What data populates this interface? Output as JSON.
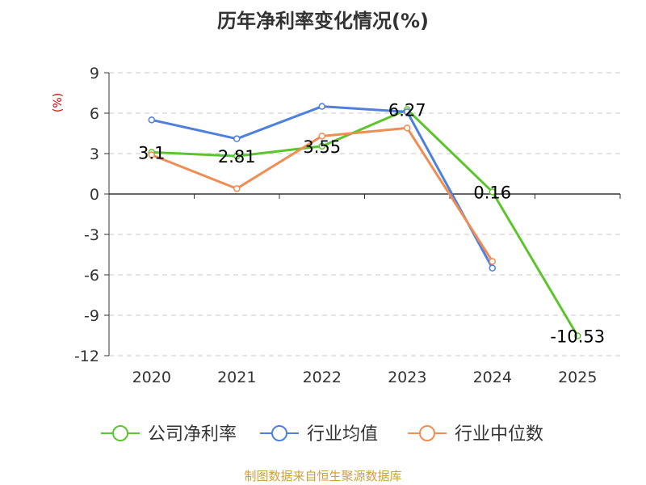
{
  "chart_data": {
    "type": "line",
    "title": "历年净利率变化情况(%)",
    "ylabel": "(%)",
    "categories": [
      "2020",
      "2021",
      "2022",
      "2023",
      "2024",
      "2025"
    ],
    "y_ticks": [
      9,
      6,
      3,
      0,
      -3,
      -6,
      -9,
      -12
    ],
    "y_tick_labels": [
      "9",
      "6",
      "3",
      "0",
      "-3",
      "-6",
      "-9",
      "-12"
    ],
    "ylim": [
      -12,
      9
    ],
    "grid": true,
    "legend_position": "bottom",
    "series": [
      {
        "name": "公司净利率",
        "color": "#5cc52e",
        "values": [
          3.1,
          2.81,
          3.55,
          6.27,
          0.16,
          -10.53
        ],
        "labels": [
          "3.1",
          "2.81",
          "3.55",
          "6.27",
          "0.16",
          "-10.53"
        ]
      },
      {
        "name": "行业均值",
        "color": "#4e80dd",
        "values": [
          5.5,
          4.1,
          6.5,
          6.1,
          -5.5,
          null
        ]
      },
      {
        "name": "行业中位数",
        "color": "#f08d55",
        "values": [
          2.9,
          0.4,
          4.3,
          4.9,
          -5.0,
          null
        ]
      }
    ]
  },
  "footer": {
    "source": "制图数据来自恒生聚源数据库"
  }
}
